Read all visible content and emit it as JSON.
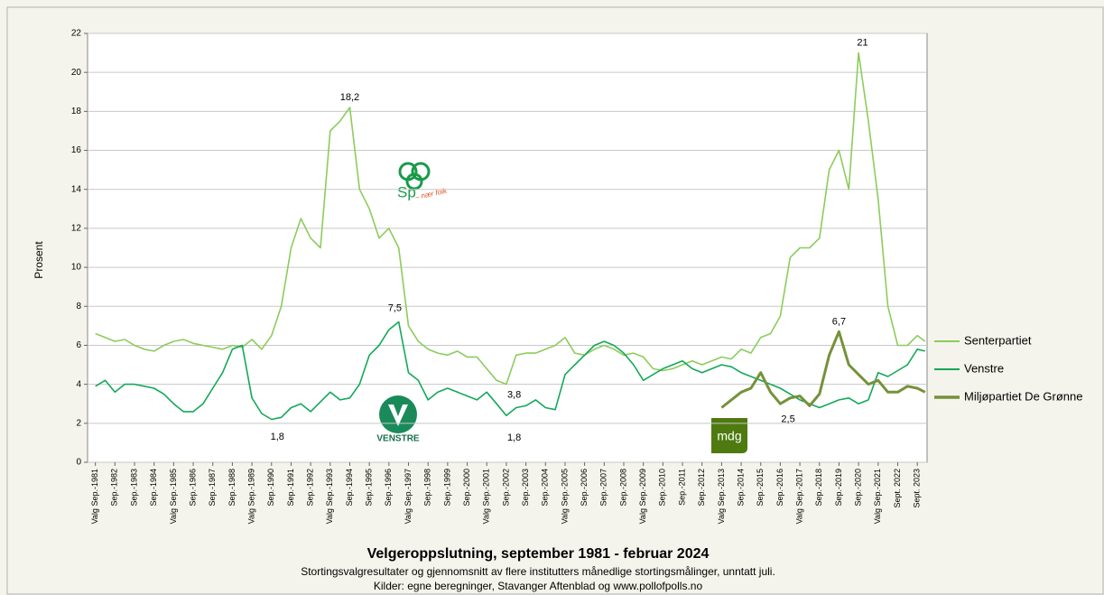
{
  "chart_data": {
    "type": "line",
    "title": "Velgeroppslutning, september 1981 - februar 2024",
    "subtitle": "Stortingsvalgresultater og gjennomsnitt av flere institutters månedlige stortingsmålinger, unntatt juli.",
    "source": "Kilder: egne beregninger, Stavanger Aftenblad og www.pollofpolls.no",
    "y_label": "Prosent",
    "xlim": [
      1981.3,
      2024.2
    ],
    "ylim": [
      0,
      22
    ],
    "yticks": [
      0,
      2,
      4,
      6,
      8,
      10,
      12,
      14,
      16,
      18,
      20,
      22
    ],
    "grid": true,
    "legend": "right",
    "xticks": [
      {
        "value": 1981.7,
        "label": "Valg Sep.-1981"
      },
      {
        "value": 1982.7,
        "label": "Sep.-1982"
      },
      {
        "value": 1983.7,
        "label": "Sep.-1983"
      },
      {
        "value": 1984.7,
        "label": "Sep.-1984"
      },
      {
        "value": 1985.7,
        "label": "Valg Sep.-1985"
      },
      {
        "value": 1986.7,
        "label": "Sep.-1986"
      },
      {
        "value": 1987.7,
        "label": "Sep.-1987"
      },
      {
        "value": 1988.7,
        "label": "Sep.-1988"
      },
      {
        "value": 1989.7,
        "label": "Valg Sep.-1989"
      },
      {
        "value": 1990.7,
        "label": "Sep.-1990"
      },
      {
        "value": 1991.7,
        "label": "Sep.-1991"
      },
      {
        "value": 1992.7,
        "label": "Sep.-1992"
      },
      {
        "value": 1993.7,
        "label": "Valg Sep.-1993"
      },
      {
        "value": 1994.7,
        "label": "Sep.-1994"
      },
      {
        "value": 1995.7,
        "label": "Sep.-1995"
      },
      {
        "value": 1996.7,
        "label": "Sep.-1996"
      },
      {
        "value": 1997.7,
        "label": "Valg Sep.-1997"
      },
      {
        "value": 1998.7,
        "label": "Sep.-1998"
      },
      {
        "value": 1999.7,
        "label": "Sep.-1999"
      },
      {
        "value": 2000.7,
        "label": "Sep.-2000"
      },
      {
        "value": 2001.7,
        "label": "Valg Sep.-2001"
      },
      {
        "value": 2002.7,
        "label": "Sep.-2002"
      },
      {
        "value": 2003.7,
        "label": "Sep.-2003"
      },
      {
        "value": 2004.7,
        "label": "Sep.-2004"
      },
      {
        "value": 2005.7,
        "label": "Valg Sep.-2005"
      },
      {
        "value": 2006.7,
        "label": "Sep.-2006"
      },
      {
        "value": 2007.7,
        "label": "Sep.-2007"
      },
      {
        "value": 2008.7,
        "label": "Sep.-2008"
      },
      {
        "value": 2009.7,
        "label": "Valg Sep.-2009"
      },
      {
        "value": 2010.7,
        "label": "Sep.-2010"
      },
      {
        "value": 2011.7,
        "label": "Sep.-2011"
      },
      {
        "value": 2012.7,
        "label": "Sep.-2012"
      },
      {
        "value": 2013.7,
        "label": "Valg Sep.-2013"
      },
      {
        "value": 2014.7,
        "label": "Sep.-2014"
      },
      {
        "value": 2015.7,
        "label": "Sep.-2015"
      },
      {
        "value": 2016.7,
        "label": "Sep.-2016"
      },
      {
        "value": 2017.7,
        "label": "Valg Sep.-2017"
      },
      {
        "value": 2018.7,
        "label": "Sep.-2018"
      },
      {
        "value": 2019.7,
        "label": "Sep.-2019"
      },
      {
        "value": 2020.7,
        "label": "Sep.-2020"
      },
      {
        "value": 2021.7,
        "label": "Valg Sep.-2021"
      },
      {
        "value": 2022.7,
        "label": "Sept. 2022"
      },
      {
        "value": 2023.7,
        "label": "Sept. 2023"
      }
    ],
    "x": [
      1981.7,
      1982.2,
      1982.7,
      1983.2,
      1983.7,
      1984.2,
      1984.7,
      1985.2,
      1985.7,
      1986.2,
      1986.7,
      1987.2,
      1987.7,
      1988.2,
      1988.7,
      1989.2,
      1989.7,
      1990.2,
      1990.7,
      1991.2,
      1991.7,
      1992.2,
      1992.7,
      1993.2,
      1993.7,
      1994.2,
      1994.7,
      1995.2,
      1995.7,
      1996.2,
      1996.7,
      1997.2,
      1997.7,
      1998.2,
      1998.7,
      1999.2,
      1999.7,
      2000.2,
      2000.7,
      2001.2,
      2001.7,
      2002.2,
      2002.7,
      2003.2,
      2003.7,
      2004.2,
      2004.7,
      2005.2,
      2005.7,
      2006.2,
      2006.7,
      2007.2,
      2007.7,
      2008.2,
      2008.7,
      2009.2,
      2009.7,
      2010.2,
      2010.7,
      2011.2,
      2011.7,
      2012.2,
      2012.7,
      2013.2,
      2013.7,
      2014.2,
      2014.7,
      2015.2,
      2015.7,
      2016.2,
      2016.7,
      2017.2,
      2017.7,
      2018.2,
      2018.7,
      2019.2,
      2019.7,
      2020.2,
      2020.7,
      2021.2,
      2021.7,
      2022.2,
      2022.7,
      2023.2,
      2023.7,
      2024.1
    ],
    "series": [
      {
        "name": "Senterpartiet",
        "color": "#8ccc5c",
        "values": [
          6.6,
          6.4,
          6.2,
          6.3,
          6.0,
          5.8,
          5.7,
          6.0,
          6.2,
          6.3,
          6.1,
          6.0,
          5.9,
          5.8,
          6.0,
          5.9,
          6.3,
          5.8,
          6.5,
          8.0,
          11.0,
          12.5,
          11.5,
          11.0,
          17.0,
          17.5,
          18.2,
          14.0,
          13.0,
          11.5,
          12.0,
          11.0,
          7.0,
          6.2,
          5.8,
          5.6,
          5.5,
          5.7,
          5.4,
          5.4,
          4.8,
          4.2,
          4.0,
          5.5,
          5.6,
          5.6,
          5.8,
          6.0,
          6.4,
          5.6,
          5.5,
          5.8,
          6.0,
          5.8,
          5.5,
          5.6,
          5.4,
          4.8,
          4.7,
          4.8,
          5.0,
          5.2,
          5.0,
          5.2,
          5.4,
          5.3,
          5.8,
          5.6,
          6.4,
          6.6,
          7.5,
          10.5,
          11.0,
          11.0,
          11.5,
          15.0,
          16.0,
          14.0,
          21.0,
          17.5,
          13.5,
          8.0,
          6.0,
          6.0,
          6.5,
          6.2
        ]
      },
      {
        "name": "Venstre",
        "color": "#14a85a",
        "values": [
          3.9,
          4.2,
          3.6,
          4.0,
          4.0,
          3.9,
          3.8,
          3.5,
          3.0,
          2.6,
          2.6,
          3.0,
          3.8,
          4.6,
          5.8,
          6.0,
          3.3,
          2.5,
          2.2,
          2.3,
          2.8,
          3.0,
          2.6,
          3.1,
          3.6,
          3.2,
          3.3,
          4.0,
          5.5,
          6.0,
          6.8,
          7.2,
          4.6,
          4.2,
          3.2,
          3.6,
          3.8,
          3.6,
          3.4,
          3.2,
          3.6,
          3.0,
          2.4,
          2.8,
          2.9,
          3.2,
          2.8,
          2.7,
          4.5,
          5.0,
          5.5,
          6.0,
          6.2,
          6.0,
          5.6,
          5.0,
          4.2,
          4.5,
          4.8,
          5.0,
          5.2,
          4.8,
          4.6,
          4.8,
          5.0,
          4.9,
          4.6,
          4.4,
          4.2,
          4.0,
          3.8,
          3.5,
          3.2,
          3.0,
          2.8,
          3.0,
          3.2,
          3.3,
          3.0,
          3.2,
          4.6,
          4.4,
          4.7,
          5.0,
          5.8,
          5.7
        ]
      },
      {
        "name": "Miljøpartiet De Grønne",
        "color": "#76913a",
        "values": [
          null,
          null,
          null,
          null,
          null,
          null,
          null,
          null,
          null,
          null,
          null,
          null,
          null,
          null,
          null,
          null,
          null,
          null,
          null,
          null,
          null,
          null,
          null,
          null,
          null,
          null,
          null,
          null,
          null,
          null,
          null,
          null,
          null,
          null,
          null,
          null,
          null,
          null,
          null,
          null,
          null,
          null,
          null,
          null,
          null,
          null,
          null,
          null,
          null,
          null,
          null,
          null,
          null,
          null,
          null,
          null,
          null,
          null,
          null,
          null,
          null,
          null,
          null,
          null,
          2.8,
          3.2,
          3.6,
          3.8,
          4.6,
          3.6,
          3.0,
          3.3,
          3.4,
          2.9,
          3.5,
          5.5,
          6.7,
          5.0,
          4.5,
          4.0,
          4.2,
          3.6,
          3.6,
          3.9,
          3.8,
          3.6
        ]
      }
    ],
    "annotations": [
      {
        "text": "18,2",
        "x": 1994.7,
        "y": 18.7
      },
      {
        "text": "7,5",
        "x": 1997.0,
        "y": 7.9
      },
      {
        "text": "1,8",
        "x": 1991.0,
        "y": 1.3
      },
      {
        "text": "3,8",
        "x": 2003.1,
        "y": 3.45
      },
      {
        "text": "1,8",
        "x": 2003.1,
        "y": 1.25
      },
      {
        "text": "21",
        "x": 2020.9,
        "y": 21.5
      },
      {
        "text": "6,7",
        "x": 2019.7,
        "y": 7.2
      },
      {
        "text": "2,5",
        "x": 2017.1,
        "y": 2.2
      }
    ],
    "logos": {
      "sp": "Sp",
      "sp_slogan": "– nær folk",
      "venstre": "VENSTRE",
      "mdg": "mdg"
    }
  }
}
